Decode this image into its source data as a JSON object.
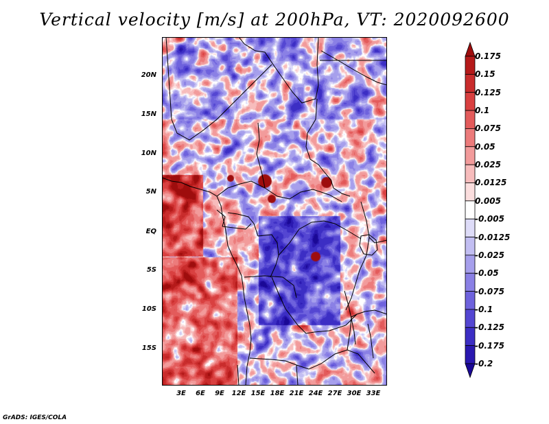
{
  "title": "Vertical velocity [m/s] at 200hPa, VT: 2020092600",
  "map": {
    "lat_labels": [
      "20N",
      "15N",
      "10N",
      "5N",
      "EQ",
      "5S",
      "10S",
      "15S"
    ],
    "lon_labels": [
      "3E",
      "6E",
      "9E",
      "12E",
      "15E",
      "18E",
      "21E",
      "24E",
      "27E",
      "30E",
      "33E"
    ],
    "lat_range": [
      -20,
      25
    ],
    "lon_range": [
      0,
      35
    ],
    "field": "vertical velocity"
  },
  "colorbar": {
    "labels": [
      "0.175",
      "0.15",
      "0.125",
      "0.1",
      "0.075",
      "0.05",
      "0.025",
      "0.0125",
      "0.005",
      "-0.005",
      "-0.0125",
      "-0.025",
      "-0.05",
      "-0.075",
      "-0.1",
      "-0.125",
      "-0.175",
      "-0.2"
    ],
    "colors": [
      "#9e0d0d",
      "#b51a1a",
      "#c92c2c",
      "#d94040",
      "#e35b5b",
      "#ec7b7b",
      "#f29b9b",
      "#f7bcbc",
      "#fbdede",
      "#ffffff",
      "#dedcf8",
      "#c2bef2",
      "#a69fec",
      "#8a80e5",
      "#6e62dd",
      "#5446d2",
      "#3c2ec4",
      "#2a18b0",
      "#1a0896"
    ]
  },
  "credit": "GrADS: IGES/COLA"
}
